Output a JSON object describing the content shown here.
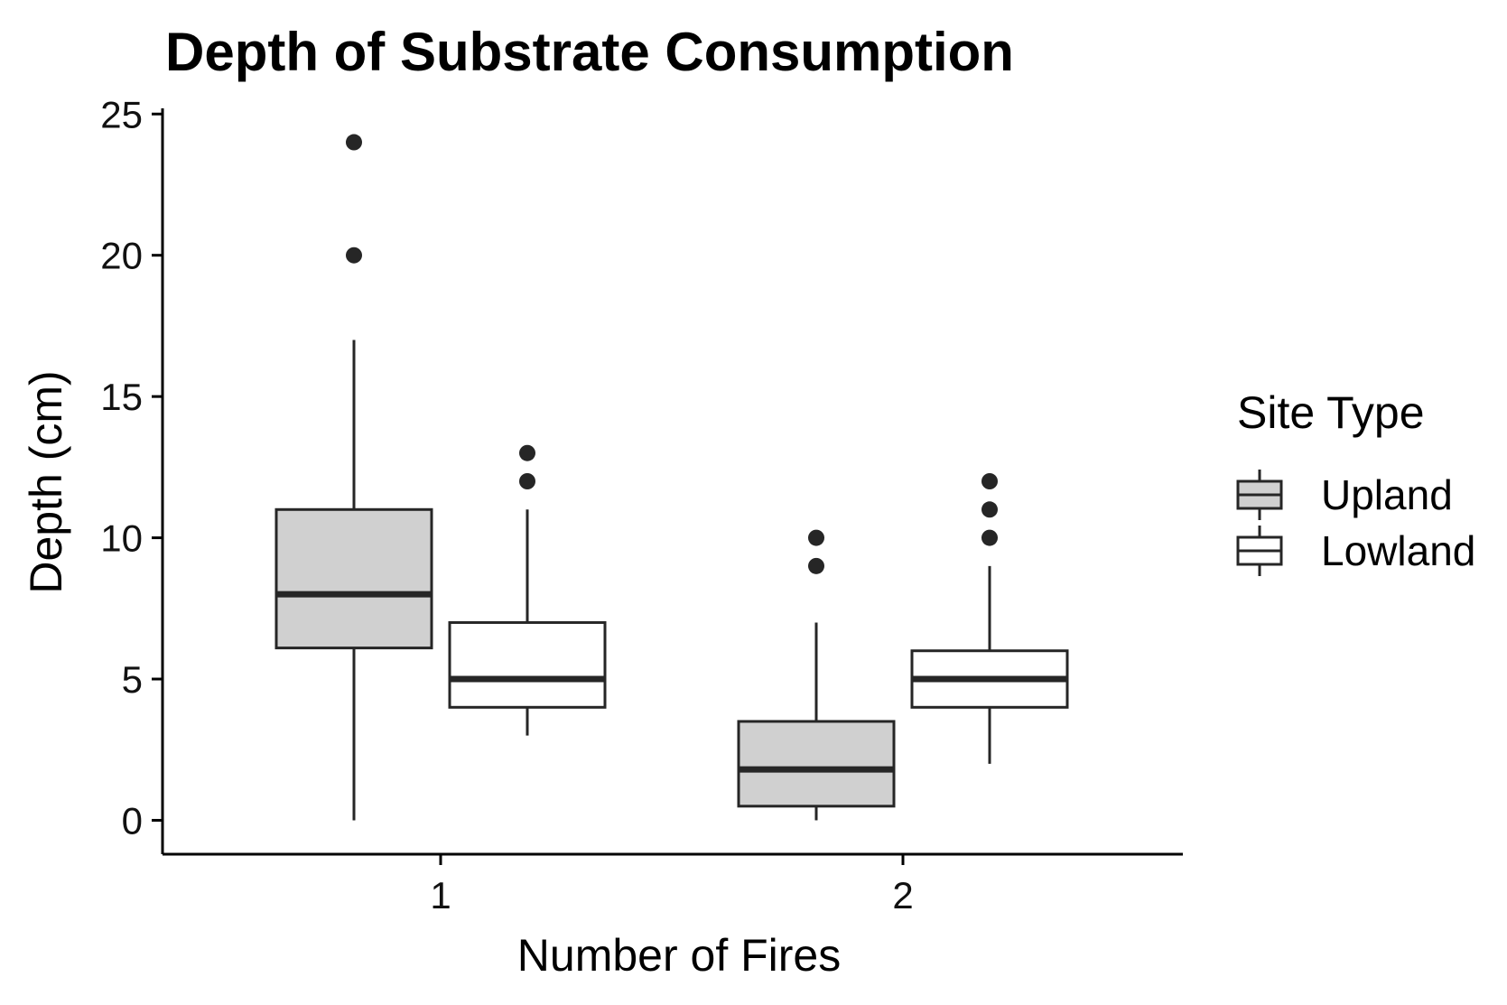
{
  "chart_data": {
    "type": "boxplot",
    "title": "Depth of Substrate Consumption",
    "xlabel": "Number of Fires",
    "ylabel": "Depth (cm)",
    "categories": [
      "1",
      "2"
    ],
    "yticks": [
      "0",
      "5",
      "10",
      "15",
      "20",
      "25"
    ],
    "ylim": [
      -1.2,
      25.2
    ],
    "grid": false,
    "legend": {
      "title": "Site Type",
      "position": "right"
    },
    "series": [
      {
        "name": "Upland",
        "fill": "#d0d0d0",
        "boxes": [
          {
            "category": "1",
            "whisker_low": 0,
            "q1": 6.1,
            "median": 8,
            "q3": 11,
            "whisker_high": 17,
            "outliers": [
              20,
              24
            ]
          },
          {
            "category": "2",
            "whisker_low": 0,
            "q1": 0.5,
            "median": 1.8,
            "q3": 3.5,
            "whisker_high": 7,
            "outliers": [
              9,
              10
            ]
          }
        ]
      },
      {
        "name": "Lowland",
        "fill": "#ffffff",
        "boxes": [
          {
            "category": "1",
            "whisker_low": 3,
            "q1": 4,
            "median": 5,
            "q3": 7,
            "whisker_high": 11,
            "outliers": [
              12,
              13
            ]
          },
          {
            "category": "2",
            "whisker_low": 2,
            "q1": 4,
            "median": 5,
            "q3": 6,
            "whisker_high": 9,
            "outliers": [
              10,
              11,
              12
            ]
          }
        ]
      }
    ]
  }
}
